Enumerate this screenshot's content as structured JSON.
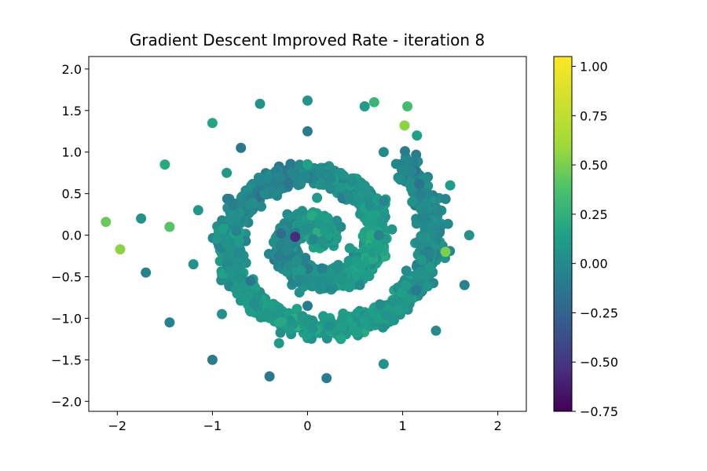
{
  "chart_data": {
    "type": "scatter",
    "title": "Gradient Descent Improved Rate - iteration 8",
    "xlabel": "",
    "ylabel": "",
    "xlim": [
      -2.3,
      2.3
    ],
    "ylim": [
      -2.12,
      2.15
    ],
    "xticks": [
      -2,
      -1,
      0,
      1,
      2
    ],
    "yticks": [
      -2.0,
      -1.5,
      -1.0,
      -0.5,
      0.0,
      0.5,
      1.0,
      1.5,
      2.0
    ],
    "xtick_labels": [
      "−2",
      "−1",
      "0",
      "1",
      "2"
    ],
    "ytick_labels": [
      "−2.0",
      "−1.5",
      "−1.0",
      "−0.5",
      "0.0",
      "0.5",
      "1.0",
      "1.5",
      "2.0"
    ],
    "grid": false,
    "colormap": "viridis",
    "colorbar": {
      "range": [
        -0.75,
        1.05
      ],
      "ticks": [
        1.0,
        0.75,
        0.5,
        0.25,
        0.0,
        -0.25,
        -0.5,
        -0.75
      ],
      "tick_labels": [
        "1.00",
        "0.75",
        "0.50",
        "0.25",
        "0.00",
        "−0.25",
        "−0.50",
        "−0.75"
      ]
    },
    "points": [
      {
        "x": 0.0,
        "y": 1.62,
        "value": 0.05
      },
      {
        "x": 0.6,
        "y": 1.55,
        "value": 0.12
      },
      {
        "x": 1.15,
        "y": 1.2,
        "value": 0.15
      },
      {
        "x": 1.5,
        "y": 0.6,
        "value": 0.12
      },
      {
        "x": 1.7,
        "y": 0.0,
        "value": 0.05
      },
      {
        "x": 1.65,
        "y": -0.6,
        "value": -0.05
      },
      {
        "x": 1.35,
        "y": -1.15,
        "value": 0.0
      },
      {
        "x": 0.8,
        "y": -1.55,
        "value": 0.05
      },
      {
        "x": 0.2,
        "y": -1.72,
        "value": -0.1
      },
      {
        "x": -0.4,
        "y": -1.7,
        "value": -0.12
      },
      {
        "x": -1.0,
        "y": -1.5,
        "value": -0.1
      },
      {
        "x": -1.45,
        "y": -1.05,
        "value": -0.05
      },
      {
        "x": -1.7,
        "y": -0.45,
        "value": -0.05
      },
      {
        "x": -1.75,
        "y": 0.2,
        "value": 0.05
      },
      {
        "x": -1.5,
        "y": 0.85,
        "value": 0.2
      },
      {
        "x": -1.0,
        "y": 1.35,
        "value": 0.18
      },
      {
        "x": -0.5,
        "y": 1.58,
        "value": 0.05
      },
      {
        "x": 0.0,
        "y": 1.25,
        "value": -0.1
      },
      {
        "x": -0.7,
        "y": 1.05,
        "value": -0.12
      },
      {
        "x": 0.8,
        "y": 1.0,
        "value": 0.0
      },
      {
        "x": 1.1,
        "y": 0.4,
        "value": 0.05
      },
      {
        "x": 1.2,
        "y": -0.3,
        "value": 0.1
      },
      {
        "x": 0.95,
        "y": -0.9,
        "value": 0.12
      },
      {
        "x": 0.35,
        "y": -1.25,
        "value": 0.18
      },
      {
        "x": -0.3,
        "y": -1.3,
        "value": 0.1
      },
      {
        "x": -0.9,
        "y": -0.95,
        "value": 0.05
      },
      {
        "x": -1.2,
        "y": -0.35,
        "value": 0.05
      },
      {
        "x": -1.15,
        "y": 0.3,
        "value": 0.08
      },
      {
        "x": -0.85,
        "y": 0.75,
        "value": 0.1
      },
      {
        "x": 0.0,
        "y": 0.85,
        "value": 0.15
      },
      {
        "x": 0.6,
        "y": 0.55,
        "value": 0.05
      },
      {
        "x": 0.75,
        "y": 0.0,
        "value": -0.05
      },
      {
        "x": 0.55,
        "y": -0.6,
        "value": 0.0
      },
      {
        "x": 0.0,
        "y": -0.85,
        "value": -0.1
      },
      {
        "x": -0.6,
        "y": -0.55,
        "value": -0.12
      },
      {
        "x": -0.75,
        "y": 0.05,
        "value": -0.05
      },
      {
        "x": -0.45,
        "y": 0.5,
        "value": 0.0
      },
      {
        "x": 0.1,
        "y": 0.45,
        "value": 0.1
      },
      {
        "x": 0.35,
        "y": 0.1,
        "value": 0.0
      },
      {
        "x": 0.15,
        "y": -0.4,
        "value": -0.05
      },
      {
        "x": -0.3,
        "y": -0.25,
        "value": -0.1
      },
      {
        "x": -0.28,
        "y": 0.02,
        "value": -0.2
      },
      {
        "x": 1.02,
        "y": 1.32,
        "value": 0.55
      },
      {
        "x": -2.12,
        "y": 0.16,
        "value": 0.45
      },
      {
        "x": -1.97,
        "y": -0.17,
        "value": 0.55
      },
      {
        "x": 1.45,
        "y": -0.2,
        "value": 0.5
      },
      {
        "x": -1.45,
        "y": 0.1,
        "value": 0.4
      },
      {
        "x": -0.13,
        "y": -0.02,
        "value": -0.55
      },
      {
        "x": 1.05,
        "y": 1.55,
        "value": 0.35
      },
      {
        "x": 0.7,
        "y": 1.6,
        "value": 0.3
      }
    ]
  }
}
